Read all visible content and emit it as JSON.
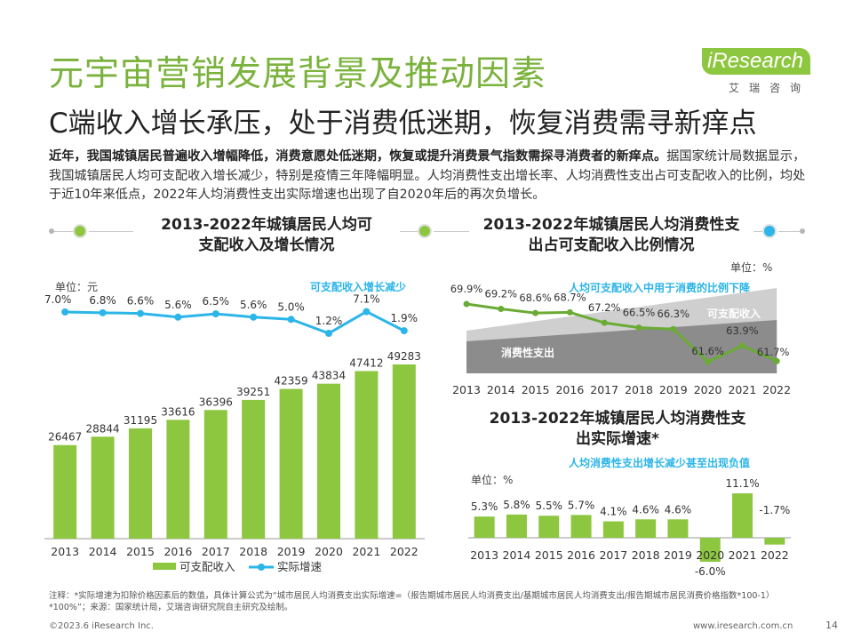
{
  "title": "元宇宙营销发展背景及推动因素",
  "subtitle": "C端收入增长承压，处于消费低迷期，恢复消费需寻新痒点",
  "logo": {
    "brand": "iResearch",
    "cn": "艾瑞咨询"
  },
  "intro": {
    "bold": "近年，我国城镇居民普遍收入增幅降低，消费意愿处低迷期，恢复或提升消费景气指数需探寻消费者的新痒点。",
    "normal": "据国家统计局数据显示，我国城镇居民人均可支配收入增长减少，特别是疫情三年降幅明显。人均消费性支出增长率、人均消费性支出占可支配收入的比例，均处于近10年来低点，2022年人均消费性支出实际增速也出现了自2020年后的再次负增长。"
  },
  "colors": {
    "green": "#8dc63f",
    "blue": "#2bb5e8",
    "line_green": "#6aab34",
    "dark_gray": "#8c8c8c",
    "light_gray": "#cfcfcf"
  },
  "chart_data": [
    {
      "type": "bar",
      "title": "2013-2022年城镇居民人均可支配收入及增长情况",
      "title_lines": [
        "2013-2022年城镇居民人均可",
        "支配收入及增长情况"
      ],
      "unit": "单位：元",
      "annotation": "可支配收入增长减少",
      "categories": [
        "2013",
        "2014",
        "2015",
        "2016",
        "2017",
        "2018",
        "2019",
        "2020",
        "2021",
        "2022"
      ],
      "series": [
        {
          "name": "可支配收入",
          "type": "bar",
          "values": [
            26467,
            28844,
            31195,
            33616,
            36396,
            39251,
            42359,
            43834,
            47412,
            49283
          ]
        },
        {
          "name": "实际增速",
          "type": "line",
          "values": [
            7.0,
            6.8,
            6.6,
            5.6,
            6.5,
            5.6,
            5.0,
            1.2,
            7.1,
            1.9
          ],
          "labels": [
            "7.0%",
            "6.8%",
            "6.6%",
            "5.6%",
            "6.5%",
            "5.6%",
            "5.0%",
            "1.2%",
            "7.1%",
            "1.9%"
          ]
        }
      ],
      "legend": [
        "可支配收入",
        "实际增速"
      ],
      "ylim": [
        0,
        50000
      ]
    },
    {
      "type": "area",
      "title": "2013-2022年城镇居民人均消费性支出占可支配收入比例情况",
      "title_lines": [
        "2013-2022年城镇居民人均消费性支",
        "出占可支配收入比例情况"
      ],
      "unit": "单位：%",
      "annotation": "人均可支配收入中用于消费的比例下降",
      "categories": [
        "2013",
        "2014",
        "2015",
        "2016",
        "2017",
        "2018",
        "2019",
        "2020",
        "2021",
        "2022"
      ],
      "series": [
        {
          "name": "比例",
          "type": "line",
          "values": [
            69.9,
            69.2,
            68.6,
            68.7,
            67.2,
            66.5,
            66.3,
            61.6,
            63.9,
            61.7
          ],
          "labels": [
            "69.9%",
            "69.2%",
            "68.6%",
            "68.7%",
            "67.2%",
            "66.5%",
            "66.3%",
            "61.6%",
            "63.9%",
            "61.7%"
          ]
        }
      ],
      "area_labels": {
        "income": "可支配收入",
        "consumption": "消费性支出"
      }
    },
    {
      "type": "bar",
      "title": "2013-2022年城镇居民人均消费性支出实际增速*",
      "title_lines": [
        "2013-2022年城镇居民人均消费性支",
        "出实际增速*"
      ],
      "unit": "单位：%",
      "annotation": "人均消费性支出增长减少甚至出现负值",
      "categories": [
        "2013",
        "2014",
        "2015",
        "2016",
        "2017",
        "2018",
        "2019",
        "2020",
        "2021",
        "2022"
      ],
      "values": [
        5.3,
        5.8,
        5.5,
        5.7,
        4.1,
        4.6,
        4.6,
        -6.0,
        11.1,
        -1.7
      ],
      "labels": [
        "5.3%",
        "5.8%",
        "5.5%",
        "5.7%",
        "4.1%",
        "4.6%",
        "4.6%",
        "-6.0%",
        "11.1%",
        "-1.7%"
      ],
      "ylim": [
        -6,
        12
      ]
    }
  ],
  "footnote": "注释：*实际增速为扣除价格因素后的数值，具体计算公式为“城市居民人均消费支出实际增速=（报告期城市居民人均消费支出/基期城市居民人均消费支出/报告期城市居民消费价格指数*100-1）*100%”；来源：国家统计局，艾瑞咨询研究院自主研究及绘制。",
  "copyright": "©2023.6 iResearch Inc.",
  "website": "www.iresearch.com.cn",
  "page_number": "14"
}
